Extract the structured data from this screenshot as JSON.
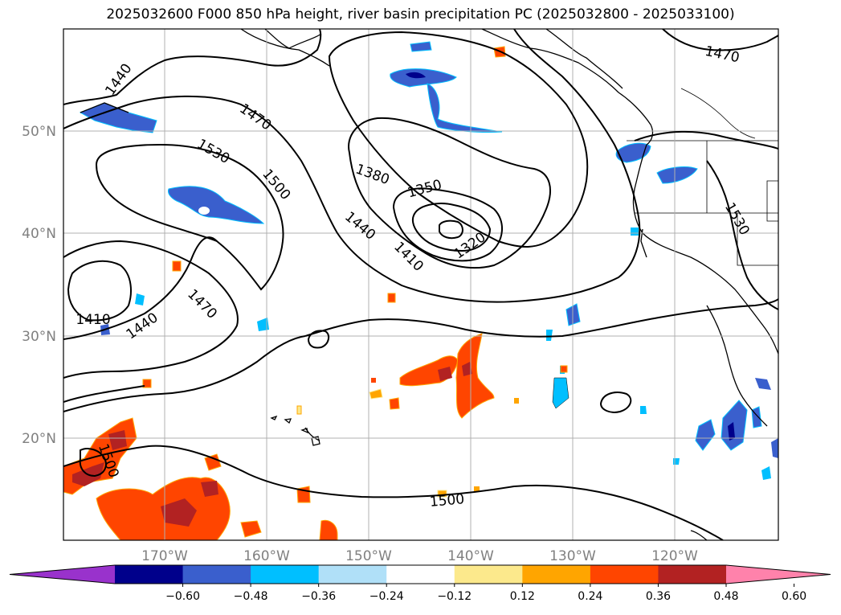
{
  "title": "2025032600 F000 850 hPa height, river basin precipitation PC (2025032800 - 2025033100)",
  "lon_labels": [
    "170°W",
    "160°W",
    "150°W",
    "140°W",
    "130°W",
    "120°W"
  ],
  "lat_labels": [
    "50°N",
    "40°N",
    "30°N",
    "20°N"
  ],
  "contour_labels": [
    "1440",
    "1470",
    "1530",
    "1500",
    "1380",
    "1350",
    "1320",
    "1410",
    "1440",
    "1410",
    "1440",
    "1470",
    "1470",
    "1530",
    "1500",
    "1500"
  ],
  "colorbar": {
    "ticks": [
      "−0.60",
      "−0.48",
      "−0.36",
      "−0.24",
      "−0.12",
      "0.12",
      "0.24",
      "0.36",
      "0.48",
      "0.60"
    ],
    "colors": [
      "#9932cc",
      "#00008b",
      "#3a5fcd",
      "#00bfff",
      "#b0e0f8",
      "#ffffff",
      "#fce98c",
      "#ffa500",
      "#ff4500",
      "#b22222",
      "#ff82ab"
    ]
  },
  "colors": {
    "pos_high": "#b22222",
    "pos_mid": "#ff4500",
    "pos_low": "#ffa500",
    "pos_min": "#fce98c",
    "neg_low": "#b0e0f8",
    "neg_mid": "#00bfff",
    "neg_high": "#3a5fcd",
    "neg_max": "#00008b"
  }
}
